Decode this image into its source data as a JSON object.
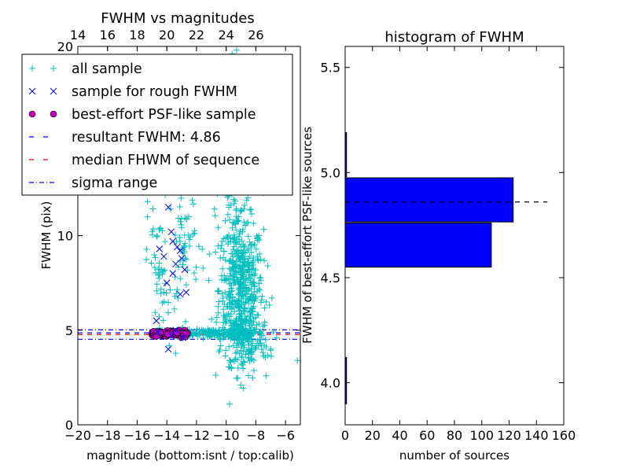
{
  "chart_data": [
    {
      "type": "scatter",
      "title": "FWHM vs magnitudes",
      "xlabel": "magnitude (bottom:isnt / top:calib)",
      "ylabel": "FWHM (pix)",
      "xlim": [
        -20,
        -5
      ],
      "ylim": [
        0,
        20
      ],
      "x_ticks": [
        -20,
        -18,
        -16,
        -14,
        -12,
        -10,
        -8,
        -6
      ],
      "x_tick_labels": [
        "−20",
        "−18",
        "−16",
        "−14",
        "−12",
        "−10",
        "−8",
        "−6"
      ],
      "y_ticks": [
        0,
        5,
        10,
        20
      ],
      "y_tick_labels": [
        "0",
        "5",
        "10",
        "20"
      ],
      "top_axis": {
        "ticks": [
          14,
          16,
          18,
          20,
          22,
          24,
          26
        ],
        "tick_labels": [
          "14",
          "16",
          "18",
          "20",
          "22",
          "24",
          "26"
        ],
        "offset": 34
      },
      "grid": false,
      "legend_placement": "top-left",
      "resultant_fwhm": 4.86,
      "median_fwhm": 4.77,
      "sigma_range": [
        4.52,
        5.02
      ],
      "series": [
        {
          "name": "all sample",
          "marker": "plus",
          "color": "#00bfbf",
          "clusters": [
            {
              "x_center": -9.0,
              "x_spread": 0.75,
              "y_center": 7.2,
              "y_spread": 1.8,
              "count": 480
            },
            {
              "x_center": -9.4,
              "x_spread": 0.6,
              "y_center": 11.3,
              "y_spread": 1.2,
              "count": 60
            },
            {
              "x_center": -8.7,
              "x_spread": 0.8,
              "y_center": 4.5,
              "y_spread": 0.9,
              "count": 160
            },
            {
              "x_center": -11.0,
              "x_spread": 1.2,
              "y_center": 4.85,
              "y_spread": 0.12,
              "count": 130
            },
            {
              "x_center": -14.6,
              "x_spread": 0.35,
              "y_center": 8.5,
              "y_spread": 1.8,
              "count": 40
            },
            {
              "x_center": -12.7,
              "x_spread": 0.5,
              "y_center": 9.5,
              "y_spread": 1.3,
              "count": 45
            },
            {
              "x_center": -13.6,
              "x_spread": 0.4,
              "y_center": 6.4,
              "y_spread": 1.0,
              "count": 20
            }
          ],
          "points": [
            {
              "x": -15.3,
              "y": 11.8
            },
            {
              "x": -14.2,
              "y": 7.0
            },
            {
              "x": -9.2,
              "y": 3.0
            },
            {
              "x": -9.0,
              "y": 2.1
            },
            {
              "x": -5.2,
              "y": 3.4
            },
            {
              "x": -6.6,
              "y": 4.6
            },
            {
              "x": -8.5,
              "y": 2.6
            },
            {
              "x": -9.6,
              "y": 19.6
            },
            {
              "x": -9.3,
              "y": 19.8
            },
            {
              "x": -10.6,
              "y": 12.2
            },
            {
              "x": -7.6,
              "y": 4.2
            },
            {
              "x": -7.0,
              "y": 4.0
            }
          ]
        },
        {
          "name": "sample for rough FWHM",
          "marker": "x",
          "color": "#0000ff",
          "points": [
            {
              "x": -13.9,
              "y": 11.5
            },
            {
              "x": -13.7,
              "y": 10.2
            },
            {
              "x": -13.6,
              "y": 9.7
            },
            {
              "x": -13.3,
              "y": 9.4
            },
            {
              "x": -13.1,
              "y": 9.2
            },
            {
              "x": -13.4,
              "y": 8.5
            },
            {
              "x": -13.0,
              "y": 8.8
            },
            {
              "x": -12.8,
              "y": 8.2
            },
            {
              "x": -13.6,
              "y": 8.0
            },
            {
              "x": -14.5,
              "y": 9.3
            },
            {
              "x": -14.2,
              "y": 8.9
            },
            {
              "x": -14.0,
              "y": 7.5
            },
            {
              "x": -12.7,
              "y": 7.0
            },
            {
              "x": -13.1,
              "y": 6.9
            },
            {
              "x": -14.7,
              "y": 5.5
            },
            {
              "x": -13.9,
              "y": 4.0
            },
            {
              "x": -14.6,
              "y": 4.9
            },
            {
              "x": -13.4,
              "y": 5.0
            },
            {
              "x": -12.9,
              "y": 4.6
            },
            {
              "x": -13.7,
              "y": 4.7
            }
          ]
        },
        {
          "name": "best-effort PSF-like sample",
          "marker": "circle",
          "color": "#bf00bf",
          "cluster": {
            "x_min": -15.0,
            "x_max": -12.6,
            "y_center": 4.82,
            "y_spread": 0.07,
            "count": 140
          }
        }
      ],
      "lines": [
        {
          "name": "resultant FWHM: 4.86",
          "style": "dashed",
          "color": "#0000ff"
        },
        {
          "name": "median FHWM of sequence",
          "style": "dashed",
          "color": "#ff0000"
        },
        {
          "name": "sigma range",
          "style": "dashdot",
          "color": "#0000ff"
        }
      ]
    },
    {
      "type": "bar",
      "orientation": "horizontal",
      "title": "histogram of FWHM",
      "xlabel": "number of sources",
      "ylabel": "FWHM of best-effort PSF-like sources",
      "xlim": [
        0,
        160
      ],
      "ylim": [
        3.8,
        5.6
      ],
      "x_ticks": [
        0,
        20,
        40,
        60,
        80,
        100,
        120,
        140,
        160
      ],
      "x_tick_labels": [
        "0",
        "20",
        "40",
        "60",
        "80",
        "100",
        "120",
        "140",
        "160"
      ],
      "y_ticks": [
        4.0,
        4.5,
        5.0,
        5.5
      ],
      "y_tick_labels": [
        "4.0",
        "4.5",
        "5.0",
        "5.5"
      ],
      "color": "#0000ff",
      "bins": [
        {
          "low": 3.9,
          "high": 4.12,
          "count": 1
        },
        {
          "low": 4.55,
          "high": 4.76,
          "count": 107
        },
        {
          "low": 4.765,
          "high": 4.975,
          "count": 123
        },
        {
          "low": 4.98,
          "high": 5.19,
          "count": 1
        }
      ],
      "reference_line": {
        "y": 4.86,
        "x_range": [
          0,
          148
        ],
        "style": "dashed",
        "color": "#000000"
      }
    }
  ]
}
